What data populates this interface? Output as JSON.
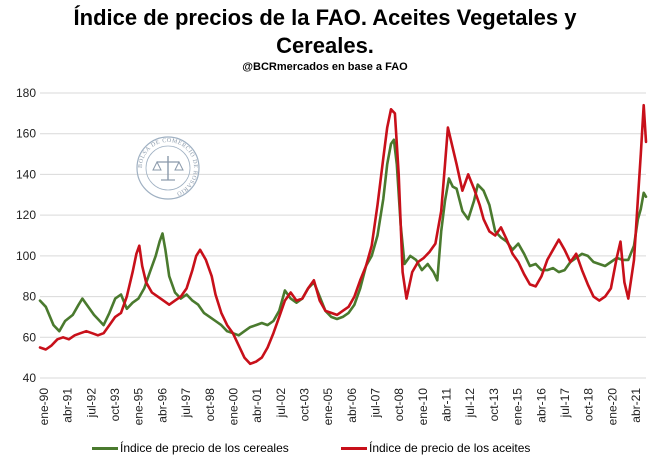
{
  "title_line1": "Índice de precios de la FAO. Aceites Vegetales y",
  "title_line2": "Cereales.",
  "subtitle": "@BCRmercados en base a FAO",
  "watermark": "BOLSA DE COMERCIO DE ROSARIO",
  "colors": {
    "cereals": "#4a7a2e",
    "oils": "#c8101a",
    "grid": "#d9d9d9"
  },
  "chart_data": {
    "type": "line",
    "title": "Índice de precios de la FAO. Aceites Vegetales y Cereales.",
    "subtitle": "@BCRmercados en base a FAO",
    "ylim": [
      40,
      180
    ],
    "yticks": [
      40,
      60,
      80,
      100,
      120,
      140,
      160,
      180
    ],
    "grid": true,
    "legend_position": "bottom",
    "x_tick_labels": [
      "ene-90",
      "abr-91",
      "jul-92",
      "oct-93",
      "ene-95",
      "abr-96",
      "jul-97",
      "oct-98",
      "ene-00",
      "abr-01",
      "jul-02",
      "oct-03",
      "ene-05",
      "abr-06",
      "jul-07",
      "oct-08",
      "ene-10",
      "abr-11",
      "jul-12",
      "oct-13",
      "ene-15",
      "abr-16",
      "jul-17",
      "oct-18",
      "ene-20",
      "abr-21"
    ],
    "x_range_years": [
      1990.0,
      2021.42
    ],
    "series": [
      {
        "name": "Índice de precio de los cereales",
        "points": [
          [
            1990.0,
            78
          ],
          [
            1990.3,
            75
          ],
          [
            1990.7,
            66
          ],
          [
            1991.0,
            63
          ],
          [
            1991.3,
            68
          ],
          [
            1991.7,
            71
          ],
          [
            1992.0,
            76
          ],
          [
            1992.2,
            79
          ],
          [
            1992.5,
            75
          ],
          [
            1992.8,
            71
          ],
          [
            1993.0,
            69
          ],
          [
            1993.3,
            66
          ],
          [
            1993.6,
            72
          ],
          [
            1993.9,
            79
          ],
          [
            1994.2,
            81
          ],
          [
            1994.5,
            74
          ],
          [
            1994.8,
            77
          ],
          [
            1995.1,
            79
          ],
          [
            1995.4,
            84
          ],
          [
            1995.7,
            92
          ],
          [
            1996.0,
            100
          ],
          [
            1996.2,
            107
          ],
          [
            1996.35,
            111
          ],
          [
            1996.5,
            103
          ],
          [
            1996.7,
            90
          ],
          [
            1997.0,
            82
          ],
          [
            1997.3,
            79
          ],
          [
            1997.6,
            81
          ],
          [
            1997.9,
            78
          ],
          [
            1998.2,
            76
          ],
          [
            1998.5,
            72
          ],
          [
            1998.8,
            70
          ],
          [
            1999.1,
            68
          ],
          [
            1999.4,
            66
          ],
          [
            1999.7,
            63
          ],
          [
            2000.0,
            62
          ],
          [
            2000.3,
            61
          ],
          [
            2000.6,
            63
          ],
          [
            2000.9,
            65
          ],
          [
            2001.2,
            66
          ],
          [
            2001.5,
            67
          ],
          [
            2001.8,
            66
          ],
          [
            2002.1,
            68
          ],
          [
            2002.4,
            73
          ],
          [
            2002.7,
            83
          ],
          [
            2003.0,
            79
          ],
          [
            2003.3,
            77
          ],
          [
            2003.6,
            79
          ],
          [
            2003.9,
            84
          ],
          [
            2004.2,
            87
          ],
          [
            2004.5,
            80
          ],
          [
            2004.8,
            73
          ],
          [
            2005.1,
            70
          ],
          [
            2005.4,
            69
          ],
          [
            2005.7,
            70
          ],
          [
            2006.0,
            72
          ],
          [
            2006.3,
            76
          ],
          [
            2006.6,
            84
          ],
          [
            2006.9,
            95
          ],
          [
            2007.2,
            100
          ],
          [
            2007.5,
            110
          ],
          [
            2007.8,
            128
          ],
          [
            2008.0,
            145
          ],
          [
            2008.2,
            155
          ],
          [
            2008.35,
            157
          ],
          [
            2008.5,
            145
          ],
          [
            2008.7,
            115
          ],
          [
            2008.9,
            96
          ],
          [
            2009.2,
            100
          ],
          [
            2009.5,
            98
          ],
          [
            2009.8,
            93
          ],
          [
            2010.1,
            96
          ],
          [
            2010.4,
            92
          ],
          [
            2010.6,
            88
          ],
          [
            2010.8,
            112
          ],
          [
            2011.0,
            127
          ],
          [
            2011.2,
            138
          ],
          [
            2011.4,
            134
          ],
          [
            2011.6,
            133
          ],
          [
            2011.9,
            122
          ],
          [
            2012.2,
            118
          ],
          [
            2012.5,
            127
          ],
          [
            2012.7,
            135
          ],
          [
            2013.0,
            132
          ],
          [
            2013.3,
            125
          ],
          [
            2013.6,
            112
          ],
          [
            2013.9,
            109
          ],
          [
            2014.2,
            107
          ],
          [
            2014.5,
            103
          ],
          [
            2014.8,
            106
          ],
          [
            2015.1,
            101
          ],
          [
            2015.4,
            95
          ],
          [
            2015.7,
            96
          ],
          [
            2016.0,
            93
          ],
          [
            2016.3,
            93
          ],
          [
            2016.6,
            94
          ],
          [
            2016.9,
            92
          ],
          [
            2017.2,
            93
          ],
          [
            2017.5,
            97
          ],
          [
            2017.8,
            99
          ],
          [
            2018.1,
            101
          ],
          [
            2018.4,
            100
          ],
          [
            2018.7,
            97
          ],
          [
            2019.0,
            96
          ],
          [
            2019.3,
            95
          ],
          [
            2019.6,
            97
          ],
          [
            2019.9,
            99
          ],
          [
            2020.2,
            98
          ],
          [
            2020.5,
            98
          ],
          [
            2020.8,
            105
          ],
          [
            2021.0,
            118
          ],
          [
            2021.15,
            123
          ],
          [
            2021.3,
            131
          ],
          [
            2021.42,
            129
          ]
        ]
      },
      {
        "name": "Índice de precio de los aceites",
        "points": [
          [
            1990.0,
            55
          ],
          [
            1990.3,
            54
          ],
          [
            1990.6,
            56
          ],
          [
            1990.9,
            59
          ],
          [
            1991.2,
            60
          ],
          [
            1991.5,
            59
          ],
          [
            1991.8,
            61
          ],
          [
            1992.1,
            62
          ],
          [
            1992.4,
            63
          ],
          [
            1992.7,
            62
          ],
          [
            1993.0,
            61
          ],
          [
            1993.3,
            62
          ],
          [
            1993.6,
            66
          ],
          [
            1993.9,
            70
          ],
          [
            1994.2,
            72
          ],
          [
            1994.5,
            80
          ],
          [
            1994.8,
            92
          ],
          [
            1995.0,
            101
          ],
          [
            1995.15,
            105
          ],
          [
            1995.3,
            95
          ],
          [
            1995.5,
            87
          ],
          [
            1995.8,
            82
          ],
          [
            1996.1,
            80
          ],
          [
            1996.4,
            78
          ],
          [
            1996.7,
            76
          ],
          [
            1997.0,
            78
          ],
          [
            1997.3,
            80
          ],
          [
            1997.6,
            84
          ],
          [
            1997.9,
            93
          ],
          [
            1998.1,
            100
          ],
          [
            1998.3,
            103
          ],
          [
            1998.6,
            98
          ],
          [
            1998.9,
            90
          ],
          [
            1999.1,
            81
          ],
          [
            1999.4,
            72
          ],
          [
            1999.7,
            66
          ],
          [
            2000.0,
            62
          ],
          [
            2000.3,
            56
          ],
          [
            2000.6,
            50
          ],
          [
            2000.9,
            47
          ],
          [
            2001.2,
            48
          ],
          [
            2001.5,
            50
          ],
          [
            2001.8,
            55
          ],
          [
            2002.1,
            62
          ],
          [
            2002.4,
            70
          ],
          [
            2002.7,
            78
          ],
          [
            2003.0,
            82
          ],
          [
            2003.3,
            78
          ],
          [
            2003.6,
            79
          ],
          [
            2003.9,
            84
          ],
          [
            2004.2,
            88
          ],
          [
            2004.5,
            78
          ],
          [
            2004.8,
            73
          ],
          [
            2005.1,
            72
          ],
          [
            2005.4,
            71
          ],
          [
            2005.7,
            73
          ],
          [
            2006.0,
            75
          ],
          [
            2006.3,
            80
          ],
          [
            2006.6,
            88
          ],
          [
            2006.9,
            95
          ],
          [
            2007.2,
            105
          ],
          [
            2007.5,
            125
          ],
          [
            2007.8,
            148
          ],
          [
            2008.0,
            163
          ],
          [
            2008.2,
            172
          ],
          [
            2008.4,
            170
          ],
          [
            2008.6,
            140
          ],
          [
            2008.8,
            92
          ],
          [
            2009.0,
            79
          ],
          [
            2009.3,
            92
          ],
          [
            2009.6,
            97
          ],
          [
            2009.9,
            99
          ],
          [
            2010.2,
            102
          ],
          [
            2010.5,
            106
          ],
          [
            2010.8,
            122
          ],
          [
            2011.0,
            145
          ],
          [
            2011.15,
            163
          ],
          [
            2011.3,
            157
          ],
          [
            2011.6,
            145
          ],
          [
            2011.9,
            132
          ],
          [
            2012.2,
            140
          ],
          [
            2012.5,
            133
          ],
          [
            2012.8,
            125
          ],
          [
            2013.0,
            118
          ],
          [
            2013.3,
            112
          ],
          [
            2013.6,
            110
          ],
          [
            2013.9,
            114
          ],
          [
            2014.2,
            108
          ],
          [
            2014.5,
            101
          ],
          [
            2014.8,
            97
          ],
          [
            2015.1,
            91
          ],
          [
            2015.4,
            86
          ],
          [
            2015.7,
            85
          ],
          [
            2016.0,
            90
          ],
          [
            2016.3,
            98
          ],
          [
            2016.6,
            103
          ],
          [
            2016.9,
            108
          ],
          [
            2017.2,
            103
          ],
          [
            2017.5,
            97
          ],
          [
            2017.8,
            101
          ],
          [
            2018.1,
            93
          ],
          [
            2018.4,
            86
          ],
          [
            2018.7,
            80
          ],
          [
            2019.0,
            78
          ],
          [
            2019.3,
            80
          ],
          [
            2019.6,
            84
          ],
          [
            2019.9,
            99
          ],
          [
            2020.1,
            107
          ],
          [
            2020.3,
            87
          ],
          [
            2020.5,
            79
          ],
          [
            2020.8,
            98
          ],
          [
            2021.0,
            128
          ],
          [
            2021.15,
            150
          ],
          [
            2021.3,
            174
          ],
          [
            2021.42,
            156
          ]
        ]
      }
    ]
  }
}
